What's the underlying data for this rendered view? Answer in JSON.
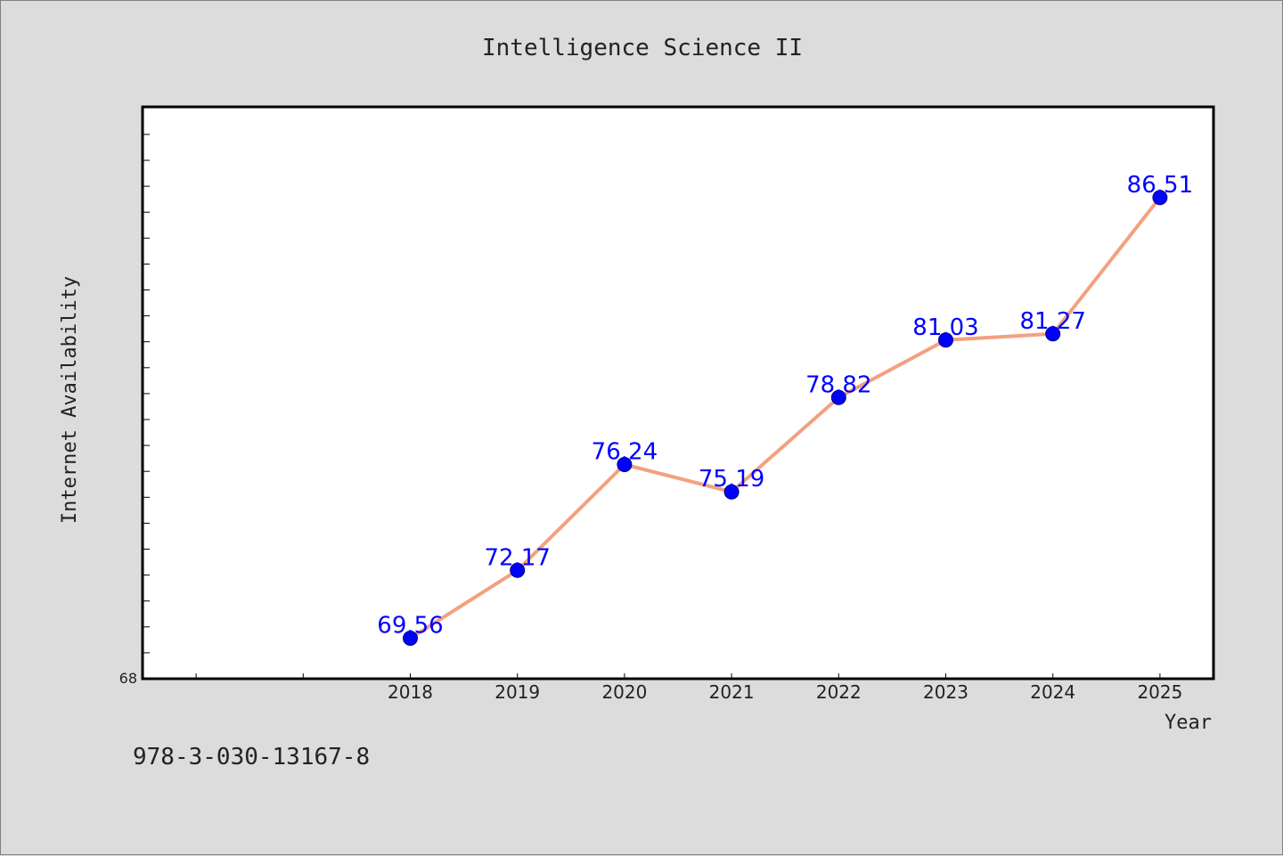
{
  "chart_data": {
    "type": "line",
    "title": "Intelligence Science II",
    "xlabel": "Year",
    "ylabel": "Internet Availability",
    "x": [
      "2018",
      "2019",
      "2020",
      "2021",
      "2022",
      "2023",
      "2024",
      "2025"
    ],
    "series": [
      {
        "values": [
          69.56,
          72.17,
          76.24,
          75.19,
          78.82,
          81.03,
          81.27,
          86.51
        ],
        "data_labels": [
          "69.56",
          "72.17",
          "76.24",
          "75.19",
          "78.82",
          "81.03",
          "81.27",
          "86.51"
        ]
      }
    ],
    "y_tick_labels": [
      "68"
    ],
    "ylim": [
      68,
      90
    ],
    "x_slots": 10,
    "grid": false,
    "legend": "none",
    "colors": {
      "line": "#f4a07f",
      "marker": "#0000ff",
      "label": "#0000ff",
      "plot_background": "#ffffff",
      "page_background": "#dcdcdc"
    }
  },
  "footnote": "978-3-030-13167-8"
}
